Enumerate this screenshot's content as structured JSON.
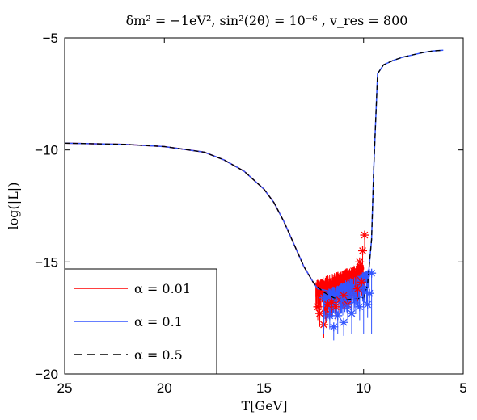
{
  "chart_data": {
    "type": "line",
    "title": "δm² = −1eV², sin²(2θ) = 10⁻⁶ , v_res = 800",
    "xlabel": "T[GeV]",
    "ylabel": "log(|L|)",
    "xlim": [
      25,
      5
    ],
    "ylim": [
      -20,
      -5
    ],
    "x_reversed": true,
    "x_ticks": [
      25,
      20,
      15,
      10,
      5
    ],
    "y_ticks": [
      -5,
      -10,
      -15,
      -20
    ],
    "grid": false,
    "legend_position": "bottom-left",
    "series": [
      {
        "name": "α = 0.01",
        "color": "#ff0000",
        "style": "solid-with-star-markers",
        "x": [
          25,
          22,
          20,
          18,
          17,
          16,
          15,
          14.5,
          14,
          13.5,
          13,
          12.5,
          12.3
        ],
        "y": [
          -9.7,
          -9.75,
          -9.85,
          -10.1,
          -10.45,
          -10.95,
          -11.75,
          -12.35,
          -13.2,
          -14.2,
          -15.2,
          -15.95,
          -16.2
        ],
        "noise_band": {
          "x": [
            12.4,
            10.0
          ],
          "upper": [
            -15.8,
            -15.0
          ],
          "lower": [
            -17.3,
            -16.5
          ]
        },
        "star_points": [
          [
            12.3,
            -17.0
          ],
          [
            12.2,
            -17.3
          ],
          [
            12.0,
            -17.8
          ],
          [
            11.9,
            -17.1
          ],
          [
            11.8,
            -16.9
          ],
          [
            11.6,
            -16.8
          ],
          [
            11.4,
            -17.0
          ],
          [
            11.2,
            -16.7
          ],
          [
            11.0,
            -16.5
          ],
          [
            10.8,
            -16.9
          ],
          [
            10.6,
            -16.4
          ],
          [
            10.4,
            -15.6
          ],
          [
            10.2,
            -15.0
          ],
          [
            10.05,
            -14.5
          ],
          [
            9.95,
            -13.8
          ],
          [
            10.1,
            -15.9
          ],
          [
            10.3,
            -16.2
          ],
          [
            10.5,
            -15.4
          ]
        ]
      },
      {
        "name": "α = 0.1",
        "color": "#3355ff",
        "style": "solid-with-star-markers",
        "x": [
          25,
          22,
          20,
          18,
          17,
          16,
          15,
          14.5,
          14,
          13.5,
          13,
          12.5,
          12.3,
          10,
          9.8,
          9.6,
          9.5,
          9.3,
          9.0,
          8.5,
          8.0,
          7.5,
          7.0,
          6.5,
          6.0
        ],
        "y": [
          -9.7,
          -9.75,
          -9.85,
          -10.1,
          -10.45,
          -10.95,
          -11.75,
          -12.35,
          -13.2,
          -14.2,
          -15.2,
          -15.95,
          -16.2,
          -16.6,
          -16.0,
          -14.0,
          -11.0,
          -6.6,
          -6.2,
          -6.0,
          -5.85,
          -5.75,
          -5.65,
          -5.58,
          -5.55
        ],
        "noise_band": {
          "x": [
            12.0,
            9.7
          ],
          "upper": [
            -16.3,
            -15.3
          ],
          "lower": [
            -17.8,
            -16.9
          ]
        },
        "star_points": [
          [
            12.0,
            -16.6
          ],
          [
            11.7,
            -17.4
          ],
          [
            11.5,
            -17.9
          ],
          [
            11.3,
            -17.4
          ],
          [
            11.0,
            -17.7
          ],
          [
            10.8,
            -17.0
          ],
          [
            10.6,
            -17.3
          ],
          [
            10.4,
            -16.7
          ],
          [
            10.2,
            -17.0
          ],
          [
            10.0,
            -16.2
          ],
          [
            9.8,
            -16.9
          ],
          [
            9.7,
            -16.4
          ],
          [
            9.6,
            -15.5
          ],
          [
            10.6,
            -16.4
          ],
          [
            11.1,
            -16.7
          ]
        ]
      },
      {
        "name": "α = 0.5",
        "color": "#000000",
        "style": "dashed",
        "x": [
          25,
          22,
          20,
          18,
          17,
          16,
          15,
          14.5,
          14,
          13.5,
          13,
          12.5,
          12,
          11.5,
          11,
          10.5,
          10,
          9.8,
          9.6,
          9.5,
          9.3,
          9.0,
          8.5,
          8.0,
          7.5,
          7.0,
          6.5,
          6.0
        ],
        "y": [
          -9.7,
          -9.75,
          -9.85,
          -10.1,
          -10.45,
          -10.95,
          -11.75,
          -12.35,
          -13.2,
          -14.2,
          -15.2,
          -15.95,
          -16.35,
          -16.6,
          -16.7,
          -16.65,
          -16.6,
          -16.0,
          -14.0,
          -11.0,
          -6.6,
          -6.2,
          -6.0,
          -5.85,
          -5.75,
          -5.65,
          -5.58,
          -5.55
        ]
      }
    ]
  }
}
